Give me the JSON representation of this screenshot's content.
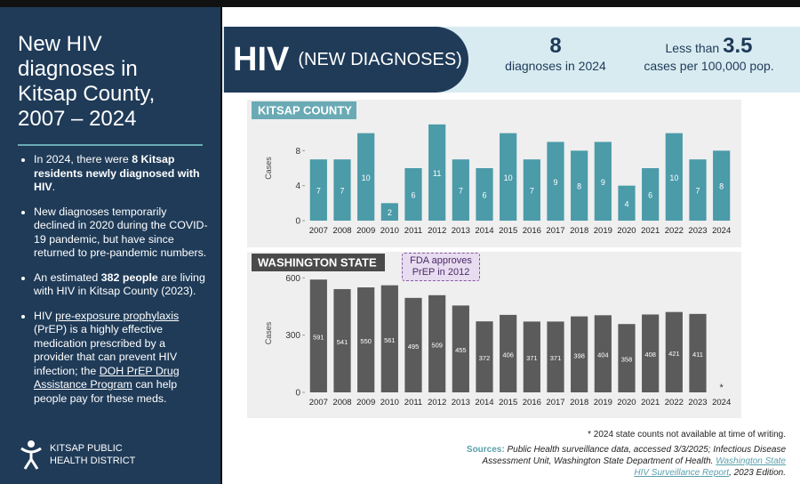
{
  "sidebar": {
    "title": "New HIV diagnoses in Kitsap County, 2007 – 2024",
    "bullets": [
      [
        {
          "text": "In 2024, there were "
        },
        {
          "text": "8 Kitsap residents newly diagnosed with HIV",
          "style": "bold"
        },
        {
          "text": "."
        }
      ],
      [
        {
          "text": "New diagnoses temporarily declined in 2020 during the COVID-19 pandemic, but have since returned to pre-pandemic numbers."
        }
      ],
      [
        {
          "text": "An estimated "
        },
        {
          "text": "382 people",
          "style": "bold"
        },
        {
          "text": " are living with HIV in Kitsap County (2023)."
        }
      ],
      [
        {
          "text": "HIV "
        },
        {
          "text": "pre-exposure prophylaxis",
          "style": "underline"
        },
        {
          "text": " (PrEP) is a highly effective medication prescribed by a provider that can prevent HIV infection; the "
        },
        {
          "text": "DOH PrEP Drug Assistance Program",
          "style": "underline"
        },
        {
          "text": " can help people pay for these meds."
        }
      ]
    ],
    "logo": [
      "KITSAP PUBLIC",
      "HEALTH DISTRICT"
    ]
  },
  "header": {
    "title": "HIV",
    "subtitle": "(NEW DIAGNOSES)",
    "stat1": {
      "value": "8",
      "label": "diagnoses in 2024"
    },
    "stat2": {
      "prefix": "Less than ",
      "value": "3.5",
      "label": "cases per 100,000 pop."
    }
  },
  "chart_data": [
    {
      "type": "bar",
      "title": "KITSAP COUNTY",
      "y_label": "Cases",
      "color": "#4b9ba9",
      "title_color": "#6aaab5",
      "categories": [
        "2007",
        "2008",
        "2009",
        "2010",
        "2011",
        "2012",
        "2013",
        "2014",
        "2015",
        "2016",
        "2017",
        "2018",
        "2019",
        "2020",
        "2021",
        "2022",
        "2023",
        "2024"
      ],
      "values": [
        7,
        7,
        10,
        2,
        6,
        11,
        7,
        6,
        10,
        7,
        9,
        8,
        9,
        4,
        6,
        10,
        7,
        8
      ],
      "ylim": [
        0,
        12
      ],
      "yticks": [
        0,
        4,
        8
      ]
    },
    {
      "type": "bar",
      "title": "WASHINGTON STATE",
      "y_label": "Cases",
      "color": "#5b5b5b",
      "title_color": "#4a4a4a",
      "categories": [
        "2007",
        "2008",
        "2009",
        "2010",
        "2011",
        "2012",
        "2013",
        "2014",
        "2015",
        "2016",
        "2017",
        "2018",
        "2019",
        "2020",
        "2021",
        "2022",
        "2023",
        "2024"
      ],
      "values": [
        591,
        541,
        550,
        561,
        495,
        509,
        455,
        372,
        406,
        371,
        371,
        398,
        404,
        358,
        408,
        421,
        411,
        null
      ],
      "missing_mark": "*",
      "annotation": "FDA approves PrEP in 2012",
      "ylim": [
        0,
        620
      ],
      "yticks": [
        0,
        300,
        600
      ]
    }
  ],
  "footer": {
    "note": "* 2024 state counts not available at time of writing.",
    "sources_label": "Sources:",
    "sources": "Public Health surveillance data, accessed 3/3/2025; Infectious Disease Assessment Unit, Washington  State Department of Health. ",
    "report": "Washington State HIV Surveillance Report",
    "edition": ", 2023 Edition."
  }
}
